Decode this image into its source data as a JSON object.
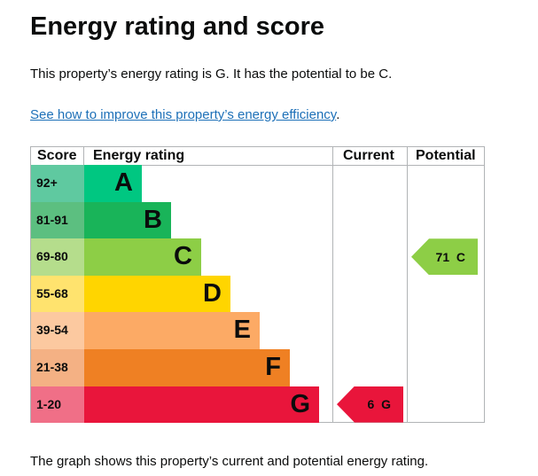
{
  "title": "Energy rating and score",
  "summary": "This property’s energy rating is G. It has the potential to be C.",
  "link": "See how to improve this property’s energy efficiency",
  "link_suffix": ".",
  "headers": {
    "score": "Score",
    "rating": "Energy rating",
    "current": "Current",
    "potential": "Potential"
  },
  "bands": [
    {
      "score": "92+",
      "letter": "A",
      "color": "#00c781",
      "tint": "#5fc9a0"
    },
    {
      "score": "81-91",
      "letter": "B",
      "color": "#19b459",
      "tint": "#5cbf80"
    },
    {
      "score": "69-80",
      "letter": "C",
      "color": "#8dce46",
      "tint": "#b5dd8c"
    },
    {
      "score": "55-68",
      "letter": "D",
      "color": "#ffd500",
      "tint": "#ffe36e"
    },
    {
      "score": "39-54",
      "letter": "E",
      "color": "#fcaa65",
      "tint": "#fcc9a0"
    },
    {
      "score": "21-38",
      "letter": "F",
      "color": "#ef8023",
      "tint": "#f4b184"
    },
    {
      "score": "1-20",
      "letter": "G",
      "color": "#e9153b",
      "tint": "#f06f87"
    }
  ],
  "current": {
    "label": "6  G",
    "score": 6,
    "band": "G"
  },
  "potential": {
    "label": "71  C",
    "score": 71,
    "band": "C"
  },
  "footer": "The graph shows this property’s current and potential energy rating."
}
